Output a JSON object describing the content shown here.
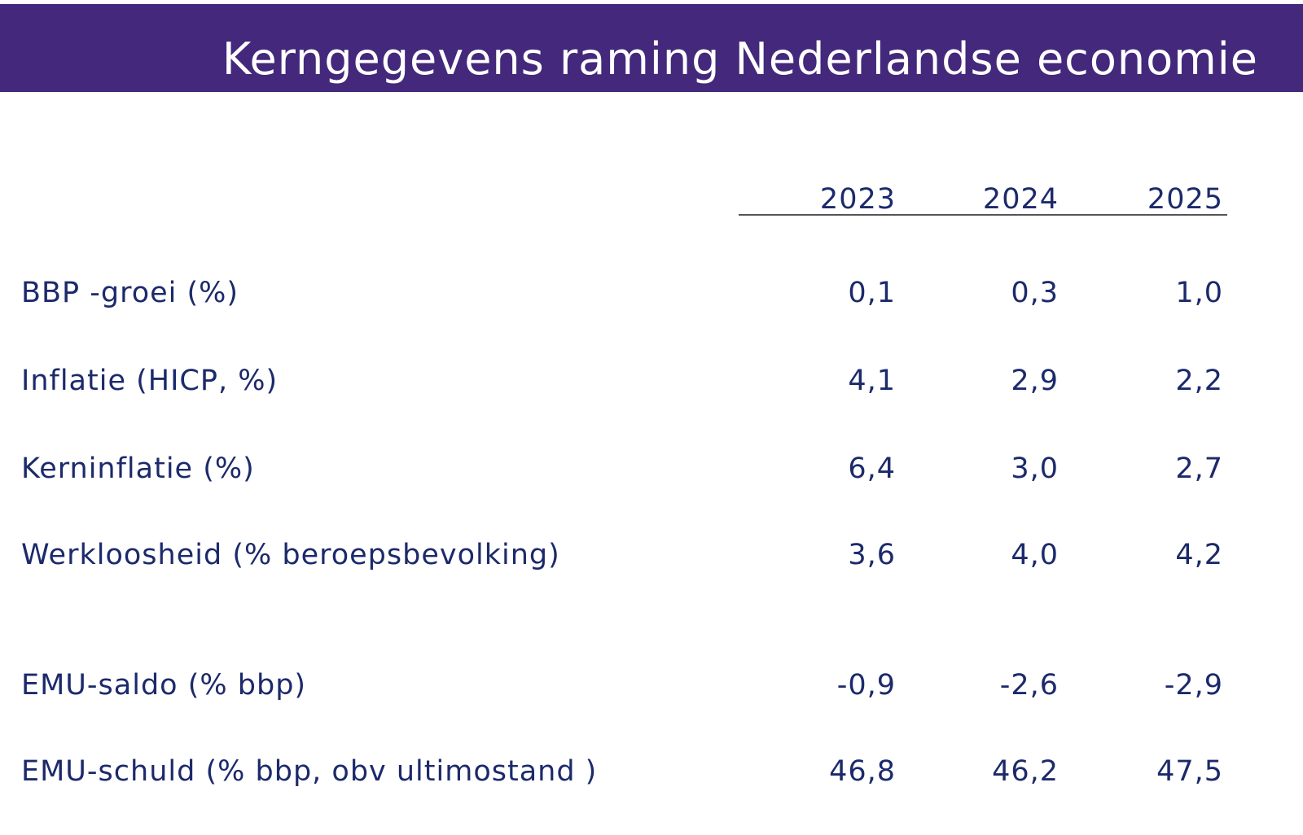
{
  "header": {
    "title": "Kerngegevens raming Nederlandse economie"
  },
  "table": {
    "columns": [
      "2023",
      "2024",
      "2025"
    ],
    "rows": [
      {
        "label": "BBP -groei (%)",
        "values": [
          "0,1",
          "0,3",
          "1,0"
        ]
      },
      {
        "label": "Inflatie (HICP, %)",
        "values": [
          "4,1",
          "2,9",
          "2,2"
        ]
      },
      {
        "label": "Kerninflatie (%)",
        "values": [
          "6,4",
          "3,0",
          "2,7"
        ]
      },
      {
        "label": "Werkloosheid (% beroepsbevolking)",
        "values": [
          "3,6",
          "4,0",
          "4,2"
        ]
      },
      {
        "label": "EMU-saldo (% bbp)",
        "values": [
          "-0,9",
          "-2,6",
          "-2,9"
        ]
      },
      {
        "label": "EMU-schuld (% bbp, obv ultimostand )",
        "values": [
          "46,8",
          "46,2",
          "47,5"
        ]
      }
    ]
  }
}
